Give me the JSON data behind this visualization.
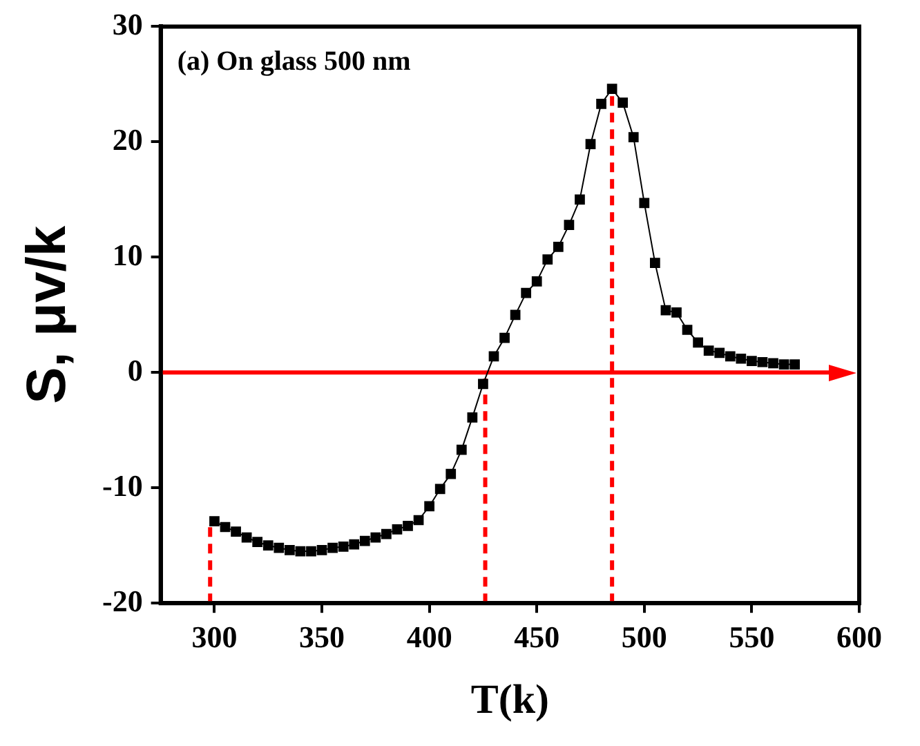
{
  "chart_data": {
    "type": "line",
    "xlabel": "T(k)",
    "ylabel": "S, μv/k",
    "annotations": [
      "(a) On glass 500 nm"
    ],
    "xlim": [
      275,
      600
    ],
    "xticks": [
      300,
      350,
      400,
      450,
      500,
      550,
      600
    ],
    "ylim": [
      -20,
      30
    ],
    "yticks": [
      -20,
      -10,
      0,
      10,
      20,
      30
    ],
    "grid": false,
    "legend": false,
    "marker": "square",
    "line_style": "solid",
    "series": [
      {
        "color": "#000000",
        "x": [
          300,
          305,
          310,
          315,
          320,
          325,
          330,
          335,
          340,
          345,
          350,
          355,
          360,
          365,
          370,
          375,
          380,
          385,
          390,
          395,
          400,
          405,
          410,
          415,
          420,
          425,
          430,
          435,
          440,
          445,
          450,
          455,
          460,
          465,
          470,
          475,
          480,
          485,
          490,
          495,
          500,
          505,
          510,
          515,
          520,
          525,
          530,
          535,
          540,
          545,
          550,
          555,
          560,
          565,
          570
        ],
        "values": [
          -12.9,
          -13.4,
          -13.8,
          -14.3,
          -14.7,
          -15.0,
          -15.2,
          -15.4,
          -15.5,
          -15.5,
          -15.4,
          -15.2,
          -15.1,
          -14.9,
          -14.6,
          -14.3,
          -14.0,
          -13.6,
          -13.3,
          -12.8,
          -11.6,
          -10.1,
          -8.8,
          -6.7,
          -3.9,
          -1.0,
          1.4,
          3.0,
          5.0,
          6.9,
          7.9,
          9.8,
          10.9,
          12.8,
          15.0,
          19.8,
          23.3,
          24.6,
          23.4,
          20.4,
          14.7,
          9.5,
          5.4,
          5.2,
          3.7,
          2.6,
          1.9,
          1.7,
          1.4,
          1.2,
          1.0,
          0.9,
          0.8,
          0.7,
          0.7
        ]
      }
    ],
    "ref_lines": [
      {
        "axis": "y",
        "value": 0,
        "color": "#ff0000",
        "line_style": "solid"
      },
      {
        "axis": "x",
        "value": 298,
        "color": "#ff0000",
        "line_style": "dashed"
      },
      {
        "axis": "x",
        "value": 426,
        "color": "#ff0000",
        "line_style": "dashed"
      },
      {
        "axis": "x",
        "value": 485,
        "color": "#ff0000",
        "line_style": "dashed"
      }
    ]
  }
}
